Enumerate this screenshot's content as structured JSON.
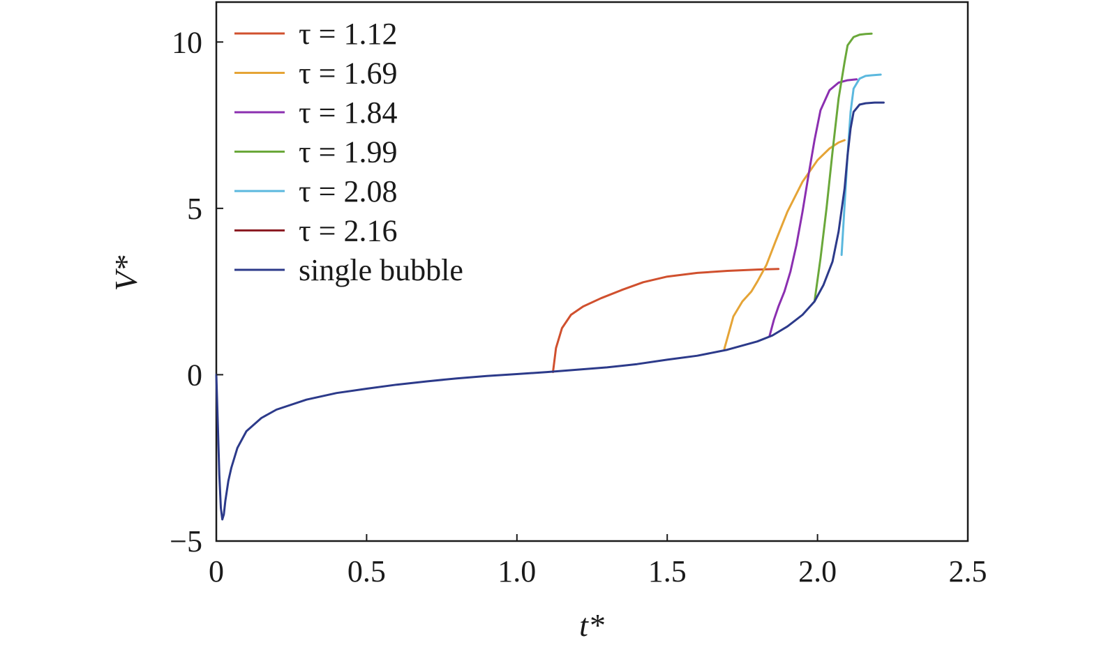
{
  "chart_data": {
    "type": "line",
    "title": "",
    "xlabel": "t*",
    "ylabel": "V*",
    "xlim": [
      0,
      2.5
    ],
    "ylim": [
      -5,
      11.2
    ],
    "xticks": [
      0,
      0.5,
      1.0,
      1.5,
      2.0,
      2.5
    ],
    "xtick_labels": [
      "0",
      "0.5",
      "1.0",
      "1.5",
      "2.0",
      "2.5"
    ],
    "yticks": [
      -5,
      0,
      5,
      10
    ],
    "ytick_labels": [
      "−5",
      "0",
      "5",
      "10"
    ],
    "grid": false,
    "legend_position": "top-left",
    "series": [
      {
        "name": "τ = 1.12",
        "color": "#d0502e",
        "x": [
          1.12,
          1.13,
          1.15,
          1.18,
          1.22,
          1.28,
          1.35,
          1.42,
          1.5,
          1.6,
          1.7,
          1.8,
          1.87
        ],
        "y": [
          0.08,
          0.8,
          1.4,
          1.8,
          2.05,
          2.3,
          2.55,
          2.78,
          2.95,
          3.06,
          3.12,
          3.16,
          3.18
        ]
      },
      {
        "name": "τ = 1.69",
        "color": "#e5a436",
        "x": [
          1.69,
          1.7,
          1.72,
          1.75,
          1.78,
          1.8,
          1.83,
          1.86,
          1.9,
          1.95,
          2.0,
          2.04,
          2.07,
          2.09
        ],
        "y": [
          0.78,
          1.1,
          1.75,
          2.2,
          2.5,
          2.8,
          3.3,
          4.0,
          4.9,
          5.8,
          6.45,
          6.8,
          6.98,
          7.05
        ]
      },
      {
        "name": "τ = 1.84",
        "color": "#8b2fb0",
        "x": [
          1.84,
          1.855,
          1.87,
          1.89,
          1.91,
          1.93,
          1.95,
          1.97,
          1.99,
          2.01,
          2.04,
          2.07,
          2.1,
          2.13
        ],
        "y": [
          1.15,
          1.65,
          2.05,
          2.5,
          3.1,
          3.9,
          4.9,
          6.0,
          7.05,
          7.95,
          8.55,
          8.78,
          8.85,
          8.88
        ]
      },
      {
        "name": "τ = 1.99",
        "color": "#6aa83a",
        "x": [
          1.99,
          2.01,
          2.03,
          2.05,
          2.07,
          2.09,
          2.1,
          2.12,
          2.14,
          2.16,
          2.18
        ],
        "y": [
          2.2,
          3.5,
          5.0,
          6.7,
          8.3,
          9.4,
          9.9,
          10.15,
          10.22,
          10.24,
          10.25
        ]
      },
      {
        "name": "τ = 2.08",
        "color": "#5bb8de",
        "x": [
          2.08,
          2.09,
          2.1,
          2.11,
          2.12,
          2.14,
          2.16,
          2.18,
          2.21
        ],
        "y": [
          3.6,
          5.1,
          6.6,
          7.9,
          8.6,
          8.9,
          8.98,
          9.0,
          9.02
        ]
      },
      {
        "name": "τ = 2.16",
        "color": "#8c1c24",
        "x": [],
        "y": []
      },
      {
        "name": "single bubble",
        "color": "#2c3a8a",
        "x": [
          0,
          0.005,
          0.01,
          0.015,
          0.02,
          0.025,
          0.03,
          0.04,
          0.05,
          0.07,
          0.1,
          0.15,
          0.2,
          0.3,
          0.4,
          0.5,
          0.6,
          0.7,
          0.8,
          0.9,
          1.0,
          1.1,
          1.2,
          1.3,
          1.4,
          1.5,
          1.6,
          1.7,
          1.8,
          1.85,
          1.9,
          1.95,
          1.99,
          2.02,
          2.05,
          2.07,
          2.09,
          2.1,
          2.11,
          2.12,
          2.14,
          2.16,
          2.19,
          2.22
        ],
        "y": [
          0,
          -1.5,
          -3.0,
          -4.0,
          -4.35,
          -4.2,
          -3.8,
          -3.2,
          -2.8,
          -2.2,
          -1.7,
          -1.3,
          -1.05,
          -0.75,
          -0.55,
          -0.42,
          -0.3,
          -0.2,
          -0.11,
          -0.04,
          0.02,
          0.08,
          0.15,
          0.22,
          0.32,
          0.45,
          0.57,
          0.75,
          1.0,
          1.18,
          1.45,
          1.8,
          2.2,
          2.7,
          3.4,
          4.3,
          5.6,
          6.6,
          7.4,
          7.9,
          8.12,
          8.16,
          8.18,
          8.18
        ]
      }
    ]
  }
}
